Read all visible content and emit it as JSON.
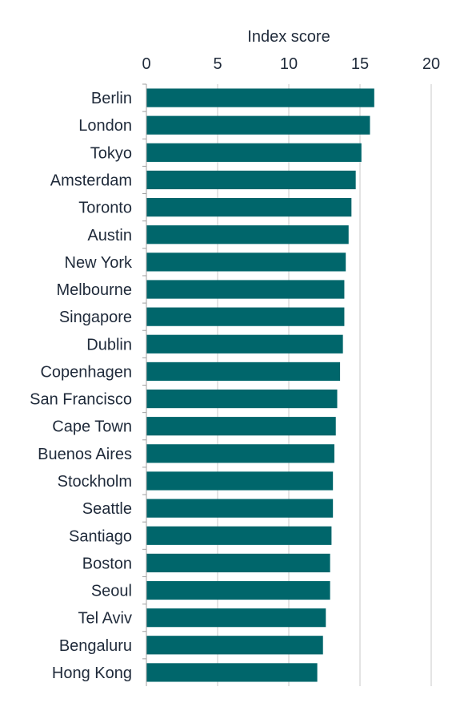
{
  "chart_data": {
    "type": "bar",
    "orientation": "horizontal",
    "xlabel": "Index score",
    "xlim": [
      0,
      20
    ],
    "xticks": [
      0,
      5,
      10,
      15,
      20
    ],
    "x_axis_position": "top",
    "grid": true,
    "bar_color": "#00666b",
    "categories": [
      "Berlin",
      "London",
      "Tokyo",
      "Amsterdam",
      "Toronto",
      "Austin",
      "New York",
      "Melbourne",
      "Singapore",
      "Dublin",
      "Copenhagen",
      "San Francisco",
      "Cape Town",
      "Buenos Aires",
      "Stockholm",
      "Seattle",
      "Santiago",
      "Boston",
      "Seoul",
      "Tel Aviv",
      "Bengaluru",
      "Hong Kong"
    ],
    "values": [
      16.0,
      15.7,
      15.1,
      14.7,
      14.4,
      14.2,
      14.0,
      13.9,
      13.9,
      13.8,
      13.6,
      13.4,
      13.3,
      13.2,
      13.1,
      13.1,
      13.0,
      12.9,
      12.9,
      12.6,
      12.4,
      12.0
    ]
  }
}
